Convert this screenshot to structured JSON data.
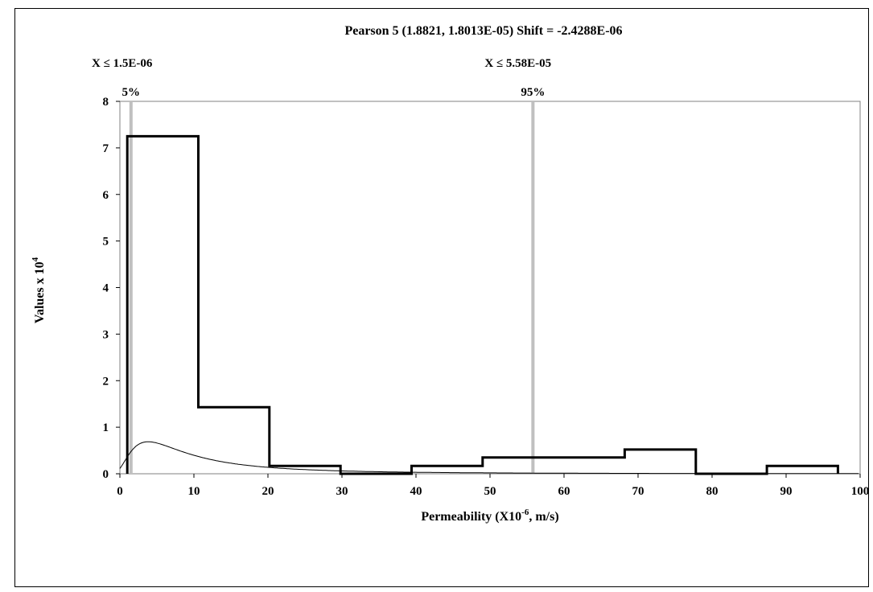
{
  "chart_data": {
    "type": "histogram",
    "title": "Pearson 5 (1.8821, 1.8013E-05) Shift = -2.4288E-06",
    "xlabel_main": "Permeability (X10",
    "xlabel_sup": "-6",
    "xlabel_tail": ", m/s)",
    "ylabel_main": "Values x 10",
    "ylabel_sup": "4",
    "xlim": [
      0,
      100
    ],
    "ylim": [
      0,
      8
    ],
    "xticks": [
      0,
      10,
      20,
      30,
      40,
      50,
      60,
      70,
      80,
      90,
      100
    ],
    "yticks": [
      0,
      1,
      2,
      3,
      4,
      5,
      6,
      7,
      8
    ],
    "histogram_bins": [
      {
        "x0": 1.0,
        "x1": 10.6,
        "value": 7.25
      },
      {
        "x0": 10.6,
        "x1": 20.2,
        "value": 1.43
      },
      {
        "x0": 20.2,
        "x1": 29.8,
        "value": 0.17
      },
      {
        "x0": 29.8,
        "x1": 39.4,
        "value": 0.0
      },
      {
        "x0": 39.4,
        "x1": 49.0,
        "value": 0.17
      },
      {
        "x0": 49.0,
        "x1": 58.6,
        "value": 0.35
      },
      {
        "x0": 58.6,
        "x1": 68.2,
        "value": 0.35
      },
      {
        "x0": 68.2,
        "x1": 77.8,
        "value": 0.52
      },
      {
        "x0": 77.8,
        "x1": 87.4,
        "value": 0.0
      },
      {
        "x0": 87.4,
        "x1": 97.0,
        "value": 0.17
      }
    ],
    "fitted_curve": {
      "distribution": "Pearson 5",
      "alpha": 1.8821,
      "beta": 18.013,
      "shift": -2.4288
    },
    "markers": [
      {
        "x": 1.5,
        "percent_label": "5%",
        "condition_label": "X ≤ 1.5E-06"
      },
      {
        "x": 55.8,
        "percent_label": "95%",
        "condition_label": "X ≤ 5.58E-05"
      }
    ],
    "colors": {
      "bars": "#000000",
      "curve": "#000000",
      "markers": "#c0c0c0",
      "plot_border": "#808080"
    }
  }
}
